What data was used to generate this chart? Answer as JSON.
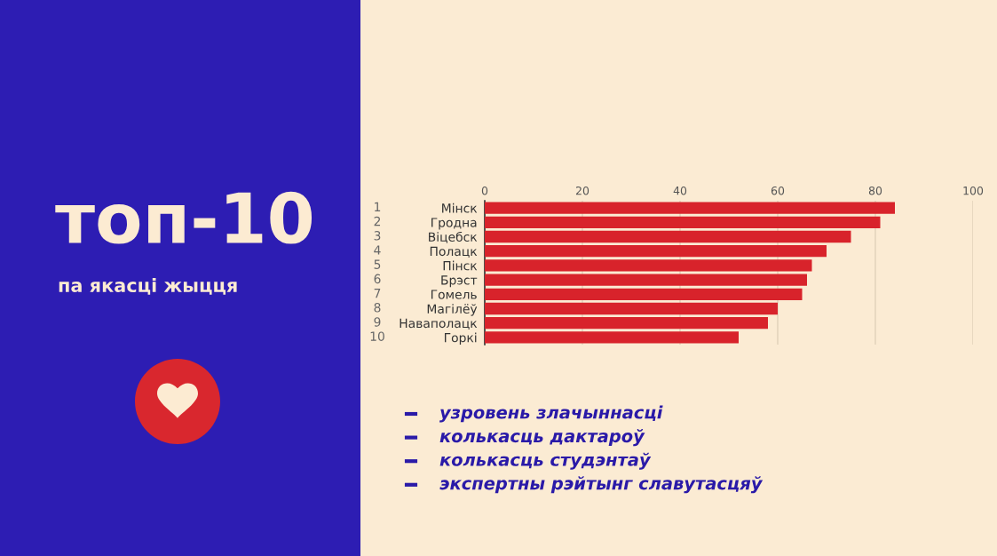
{
  "chart_data": {
    "type": "bar",
    "orientation": "horizontal",
    "title": "топ-10",
    "subtitle": "па якасці жыцця",
    "categories": [
      "Мінск",
      "Гродна",
      "Віцебск",
      "Полацк",
      "Пінск",
      "Брэст",
      "Гомель",
      "Магілёў",
      "Наваполацк",
      "Горкі"
    ],
    "values": [
      84,
      81,
      75,
      70,
      67,
      66,
      65,
      60,
      58,
      52
    ],
    "color": "#d8232b",
    "xlim": [
      0,
      100
    ],
    "xticks": [
      0,
      20,
      40,
      60,
      80,
      100
    ],
    "grid": "x",
    "annotations": [
      "1",
      "2",
      "3",
      "4",
      "5",
      "6",
      "7",
      "8",
      "9",
      "10",
      "узровень злачыннасці",
      "колькасць дактароў",
      "колькасць студэнтаў",
      "экспертны рэйтынг славутасцяў"
    ]
  }
}
